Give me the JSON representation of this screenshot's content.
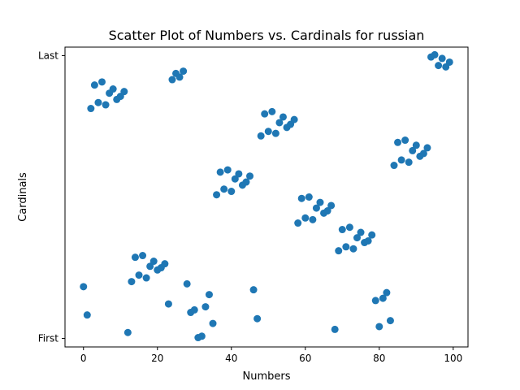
{
  "chart_data": {
    "type": "scatter",
    "title": "Scatter Plot of Numbers vs. Cardinals for russian",
    "xlabel": "Numbers",
    "ylabel": "Cardinals",
    "xlim": [
      -5,
      104
    ],
    "ylim": [
      -0.03,
      1.03
    ],
    "xticks": [
      0,
      20,
      40,
      60,
      80,
      100
    ],
    "yticks": [
      {
        "value": 0,
        "label": "First"
      },
      {
        "value": 1,
        "label": "Last"
      }
    ],
    "marker_color": "#1f77b4",
    "grid": false,
    "points": [
      [
        0,
        0.183
      ],
      [
        1,
        0.083
      ],
      [
        2,
        0.813
      ],
      [
        3,
        0.896
      ],
      [
        4,
        0.834
      ],
      [
        5,
        0.907
      ],
      [
        6,
        0.826
      ],
      [
        7,
        0.867
      ],
      [
        8,
        0.882
      ],
      [
        9,
        0.845
      ],
      [
        10,
        0.856
      ],
      [
        11,
        0.873
      ],
      [
        12,
        0.021
      ],
      [
        13,
        0.201
      ],
      [
        14,
        0.287
      ],
      [
        15,
        0.224
      ],
      [
        16,
        0.293
      ],
      [
        17,
        0.214
      ],
      [
        18,
        0.255
      ],
      [
        19,
        0.273
      ],
      [
        20,
        0.242
      ],
      [
        21,
        0.25
      ],
      [
        22,
        0.264
      ],
      [
        23,
        0.122
      ],
      [
        24,
        0.915
      ],
      [
        25,
        0.937
      ],
      [
        26,
        0.924
      ],
      [
        27,
        0.945
      ],
      [
        28,
        0.193
      ],
      [
        29,
        0.092
      ],
      [
        30,
        0.101
      ],
      [
        31,
        0.003
      ],
      [
        32,
        0.008
      ],
      [
        33,
        0.112
      ],
      [
        34,
        0.155
      ],
      [
        35,
        0.053
      ],
      [
        36,
        0.508
      ],
      [
        37,
        0.588
      ],
      [
        38,
        0.528
      ],
      [
        39,
        0.596
      ],
      [
        40,
        0.52
      ],
      [
        41,
        0.564
      ],
      [
        42,
        0.582
      ],
      [
        43,
        0.542
      ],
      [
        44,
        0.553
      ],
      [
        45,
        0.574
      ],
      [
        46,
        0.172
      ],
      [
        47,
        0.07
      ],
      [
        48,
        0.716
      ],
      [
        49,
        0.794
      ],
      [
        50,
        0.732
      ],
      [
        51,
        0.802
      ],
      [
        52,
        0.725
      ],
      [
        53,
        0.763
      ],
      [
        54,
        0.783
      ],
      [
        55,
        0.746
      ],
      [
        56,
        0.757
      ],
      [
        57,
        0.774
      ],
      [
        58,
        0.408
      ],
      [
        59,
        0.495
      ],
      [
        60,
        0.426
      ],
      [
        61,
        0.5
      ],
      [
        62,
        0.42
      ],
      [
        63,
        0.461
      ],
      [
        64,
        0.481
      ],
      [
        65,
        0.443
      ],
      [
        66,
        0.451
      ],
      [
        67,
        0.47
      ],
      [
        68,
        0.032
      ],
      [
        69,
        0.31
      ],
      [
        70,
        0.385
      ],
      [
        71,
        0.324
      ],
      [
        72,
        0.393
      ],
      [
        73,
        0.317
      ],
      [
        74,
        0.356
      ],
      [
        75,
        0.375
      ],
      [
        76,
        0.339
      ],
      [
        77,
        0.345
      ],
      [
        78,
        0.366
      ],
      [
        79,
        0.134
      ],
      [
        80,
        0.042
      ],
      [
        81,
        0.142
      ],
      [
        82,
        0.162
      ],
      [
        83,
        0.063
      ],
      [
        84,
        0.612
      ],
      [
        85,
        0.693
      ],
      [
        86,
        0.631
      ],
      [
        87,
        0.701
      ],
      [
        88,
        0.623
      ],
      [
        89,
        0.664
      ],
      [
        90,
        0.683
      ],
      [
        91,
        0.644
      ],
      [
        92,
        0.654
      ],
      [
        93,
        0.674
      ],
      [
        94,
        0.995
      ],
      [
        95,
        1.003
      ],
      [
        96,
        0.965
      ],
      [
        97,
        0.99
      ],
      [
        98,
        0.96
      ],
      [
        99,
        0.977
      ]
    ]
  }
}
